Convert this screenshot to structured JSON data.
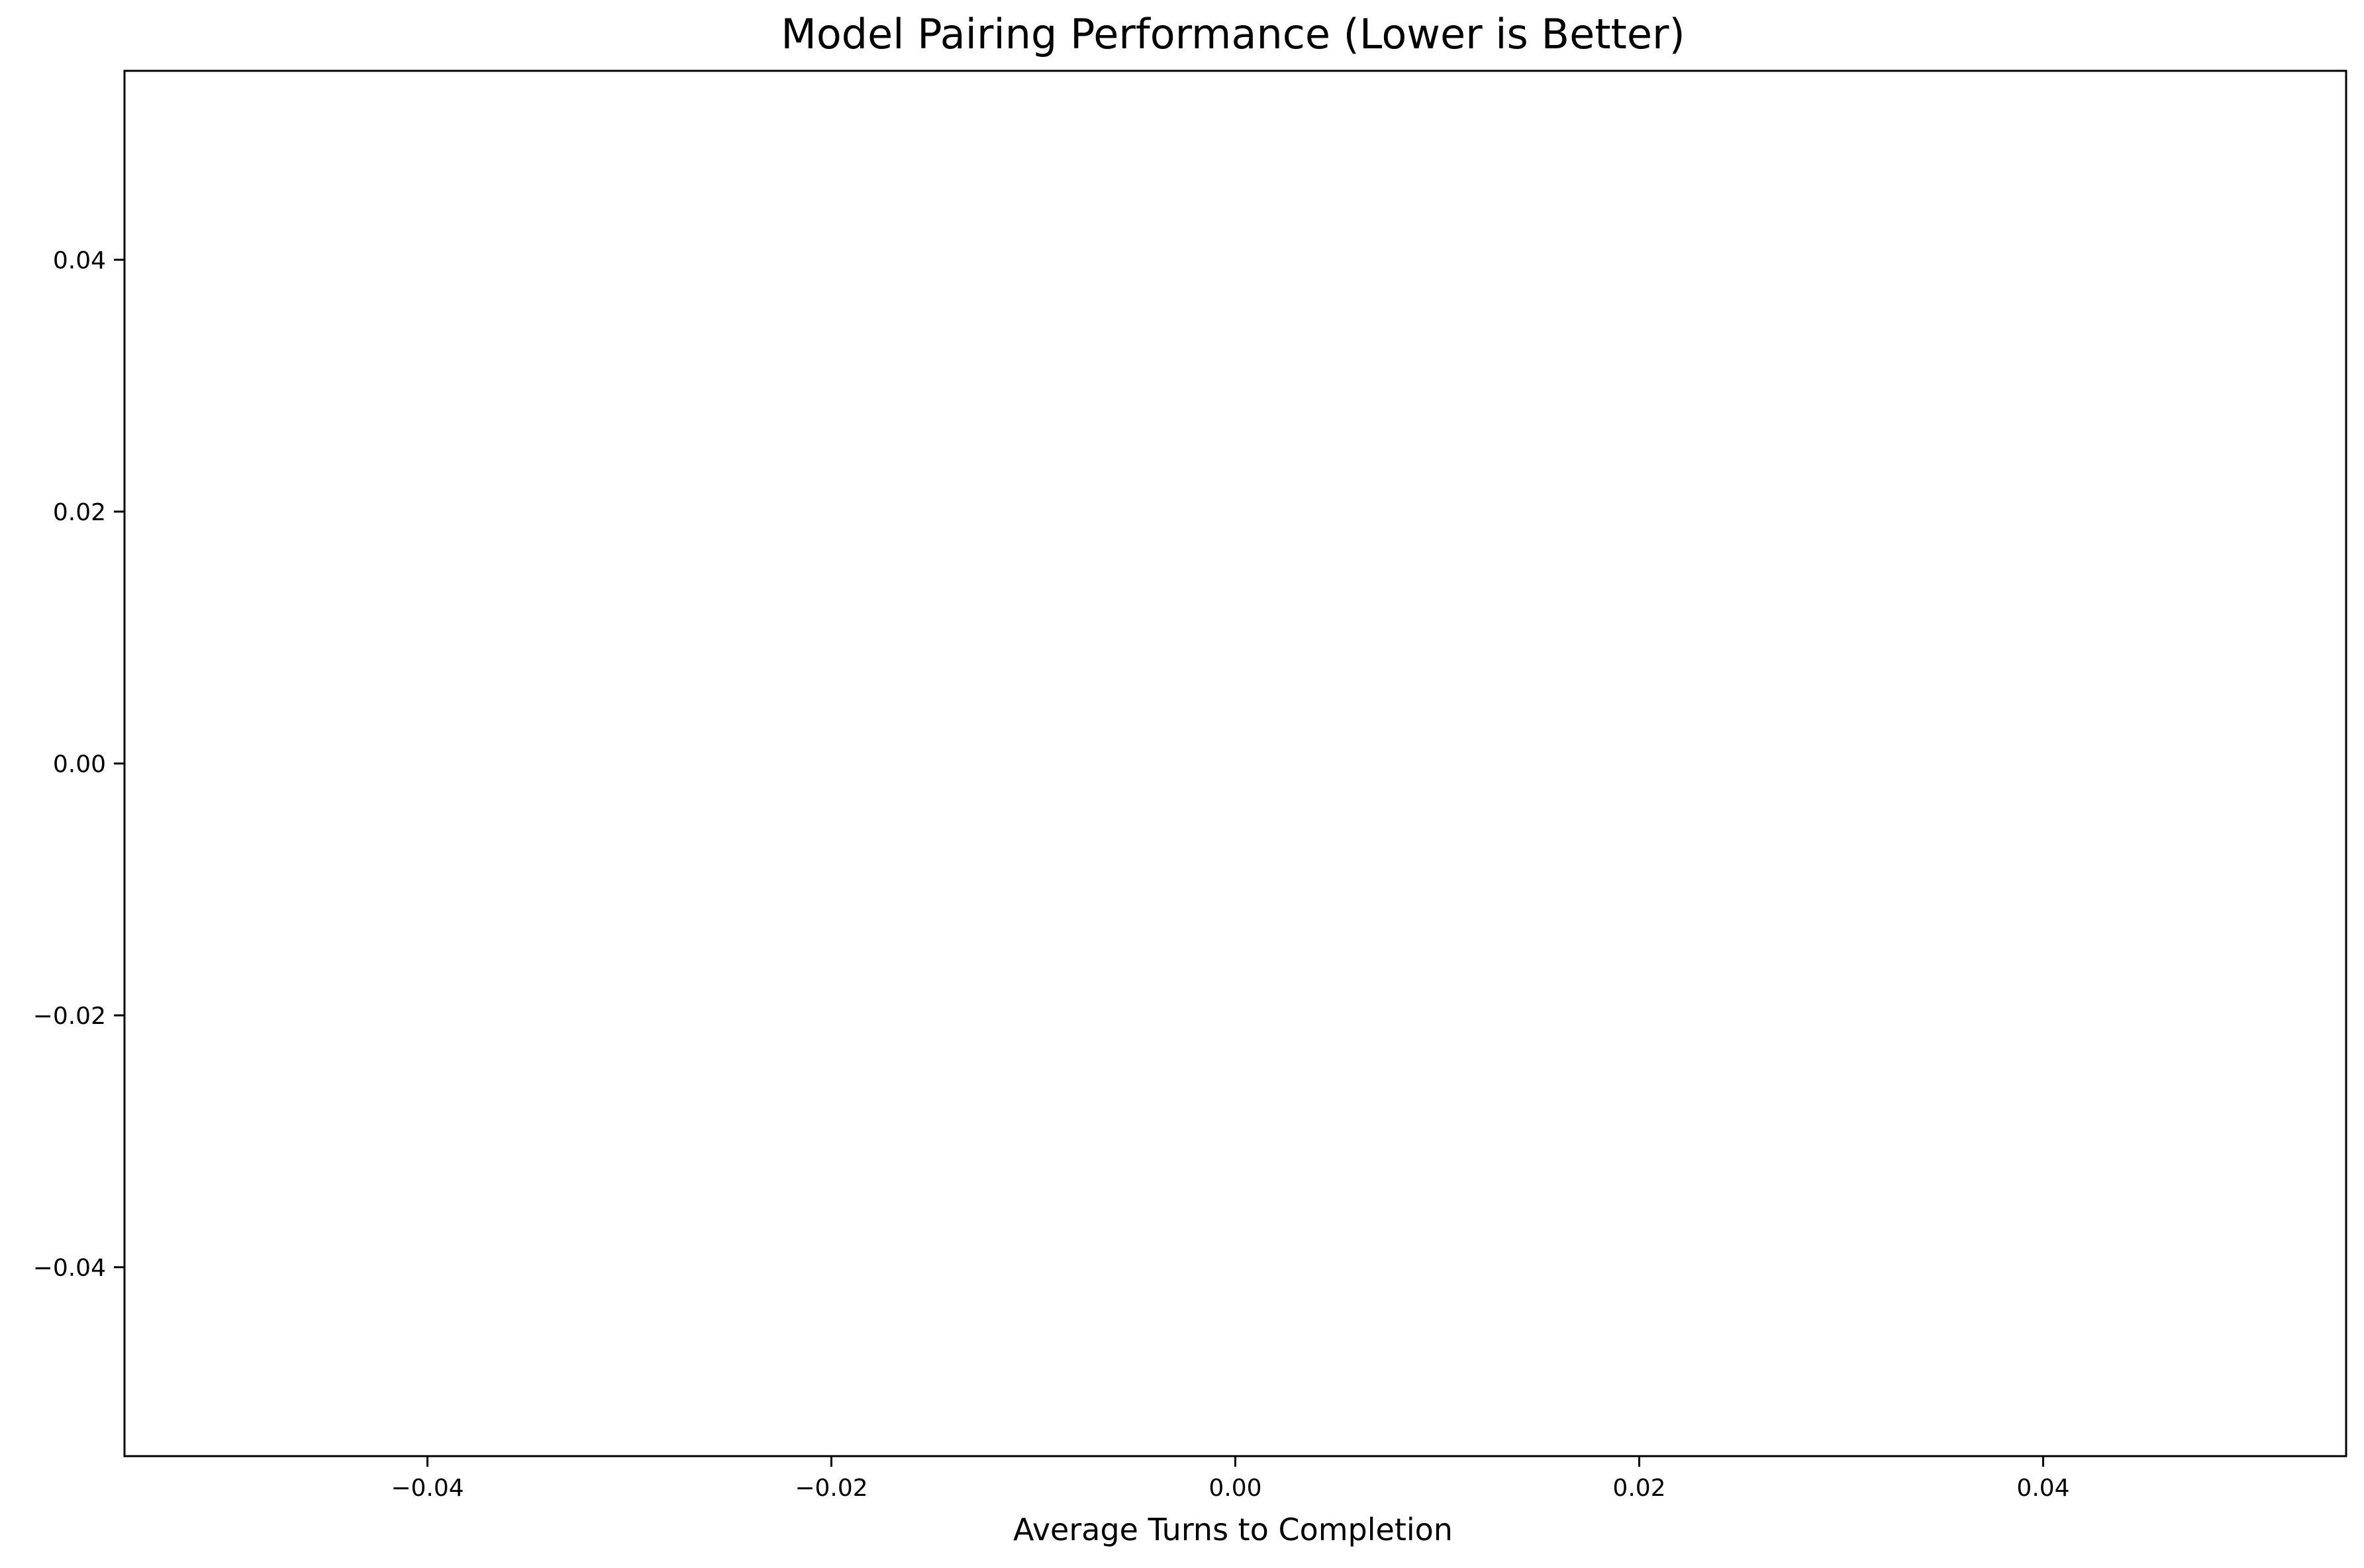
{
  "chart_data": {
    "type": "bar",
    "orientation": "horizontal",
    "title": "Model Pairing Performance (Lower is Better)",
    "xlabel": "Average Turns to Completion",
    "ylabel": "",
    "categories": [],
    "values": [],
    "xlim": [
      -0.055,
      0.055
    ],
    "ylim": [
      -0.055,
      0.055
    ],
    "xticks": [
      -0.04,
      -0.02,
      0.0,
      0.02,
      0.04
    ],
    "xtick_labels": [
      "−0.04",
      "−0.02",
      "0.00",
      "0.02",
      "0.04"
    ],
    "yticks": [
      0.04,
      0.02,
      0.0,
      -0.02,
      -0.04
    ],
    "ytick_labels": [
      "0.04",
      "0.02",
      "0.00",
      "−0.02",
      "−0.04"
    ],
    "grid": false,
    "legend": "none",
    "colors": {
      "axes": "#000000",
      "background": "#ffffff"
    }
  }
}
